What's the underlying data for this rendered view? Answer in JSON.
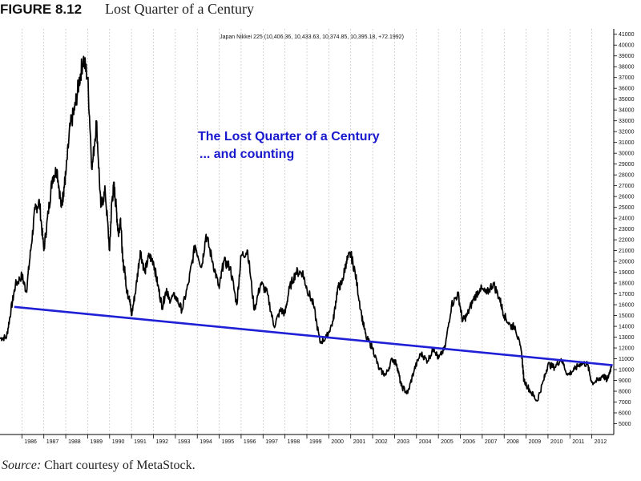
{
  "figure": {
    "label": "FIGURE 8.12",
    "title": "Lost Quarter of a Century",
    "source_label": "Source:",
    "source_text": " Chart courtesy of MetaStock."
  },
  "chart_data": {
    "type": "line",
    "header_text": "Japan Nikkei 225 (10,406.36, 10,433.63, 10,374.85, 10,395.18, +72.1992)",
    "annotation_lines": [
      "The Lost Quarter of a Century",
      "... and counting"
    ],
    "x_ticks": [
      "1986",
      "1987",
      "1988",
      "1989",
      "1990",
      "1991",
      "1992",
      "1993",
      "1994",
      "1995",
      "1996",
      "1997",
      "1998",
      "1999",
      "2000",
      "2001",
      "2002",
      "2003",
      "2004",
      "2005",
      "2006",
      "2007",
      "2008",
      "2009",
      "2010",
      "2011",
      "2012"
    ],
    "ylim": [
      4000,
      41500
    ],
    "y_ticks": [
      5000,
      6000,
      7000,
      8000,
      9000,
      10000,
      11000,
      12000,
      13000,
      14000,
      15000,
      16000,
      17000,
      18000,
      19000,
      20000,
      21000,
      22000,
      23000,
      24000,
      25000,
      26000,
      27000,
      28000,
      29000,
      30000,
      31000,
      32000,
      33000,
      34000,
      35000,
      36000,
      37000,
      38000,
      39000,
      40000,
      41000
    ],
    "grid": "vertical",
    "series": [
      {
        "color": "#000000",
        "x": [
          1985.0,
          1985.3,
          1985.5,
          1985.7,
          1986.0,
          1986.2,
          1986.4,
          1986.6,
          1986.8,
          1987.0,
          1987.2,
          1987.4,
          1987.6,
          1987.8,
          1987.9,
          1988.0,
          1988.2,
          1988.4,
          1988.6,
          1988.8,
          1989.0,
          1989.2,
          1989.4,
          1989.6,
          1989.8,
          1990.0,
          1990.1,
          1990.2,
          1990.3,
          1990.4,
          1990.5,
          1990.6,
          1990.7,
          1990.8,
          1990.9,
          1991.0,
          1991.2,
          1991.4,
          1991.6,
          1991.8,
          1992.0,
          1992.2,
          1992.4,
          1992.6,
          1992.7,
          1993.0,
          1993.3,
          1993.6,
          1993.9,
          1994.2,
          1994.4,
          1994.7,
          1995.0,
          1995.2,
          1995.5,
          1995.8,
          1996.0,
          1996.3,
          1996.6,
          1996.9,
          1997.2,
          1997.5,
          1997.8,
          1998.0,
          1998.2,
          1998.5,
          1998.8,
          1999.0,
          1999.3,
          1999.6,
          1999.9,
          2000.2,
          2000.4,
          2000.6,
          2000.8,
          2001.0,
          2001.2,
          2001.5,
          2001.7,
          2002.0,
          2002.3,
          2002.6,
          2002.9,
          2003.1,
          2003.3,
          2003.6,
          2003.9,
          2004.2,
          2004.5,
          2004.8,
          2005.0,
          2005.3,
          2005.6,
          2005.9,
          2006.1,
          2006.3,
          2006.6,
          2006.9,
          2007.2,
          2007.5,
          2007.8,
          2008.0,
          2008.3,
          2008.5,
          2008.8,
          2008.9,
          2009.2,
          2009.5,
          2009.8,
          2010.0,
          2010.3,
          2010.6,
          2010.9,
          2011.2,
          2011.5,
          2011.8,
          2012.0,
          2012.3,
          2012.5,
          2012.7,
          2012.9
        ],
        "values": [
          12900,
          13000,
          15500,
          17800,
          18700,
          17200,
          21000,
          24800,
          25500,
          21000,
          24500,
          27800,
          28500,
          25000,
          26500,
          28000,
          32500,
          34000,
          36500,
          38800,
          37000,
          28500,
          33000,
          25000,
          26500,
          21000,
          25500,
          27000,
          25000,
          22500,
          24000,
          20000,
          19000,
          17000,
          16800,
          15000,
          17500,
          21000,
          19000,
          20500,
          20000,
          17800,
          15800,
          17500,
          16500,
          16800,
          15500,
          18000,
          21500,
          19500,
          22500,
          20000,
          17500,
          20000,
          19500,
          16000,
          20500,
          21000,
          15500,
          18000,
          17000,
          14000,
          15500,
          15200,
          17500,
          19000,
          19000,
          17500,
          16000,
          12500,
          13000,
          14500,
          17500,
          18000,
          20000,
          20700,
          19000,
          15000,
          13000,
          12000,
          10000,
          9500,
          11000,
          10500,
          8500,
          7800,
          10000,
          11500,
          10800,
          12000,
          11000,
          12000,
          16000,
          17000,
          14500,
          15000,
          16500,
          17500,
          17000,
          18000,
          16500,
          15000,
          14000,
          14000,
          11500,
          9000,
          8000,
          7100,
          9000,
          10500,
          10200,
          11000,
          9500,
          10000,
          10600,
          10500,
          8800,
          9000,
          9500,
          9000,
          10400
        ]
      },
      {
        "color": "#1f1fd6",
        "x": [
          1985.65,
          2012.95
        ],
        "values": [
          15800,
          10400
        ]
      }
    ]
  }
}
